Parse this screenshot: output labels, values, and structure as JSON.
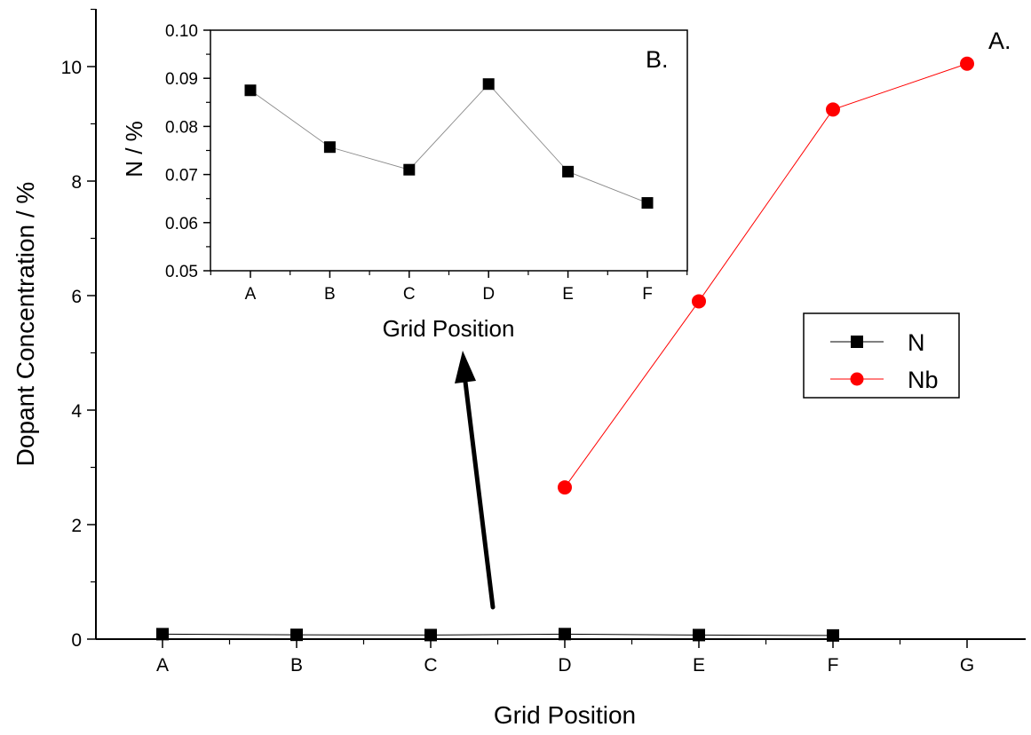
{
  "chart_data": [
    {
      "type": "line",
      "panel_label": "A.",
      "xlabel": "Grid Position",
      "ylabel": "Dopant Concentration / %",
      "categories": [
        "A",
        "B",
        "C",
        "D",
        "E",
        "F",
        "G"
      ],
      "ylim": [
        0,
        11
      ],
      "yticks": [
        "0",
        "2",
        "4",
        "6",
        "8",
        "10"
      ],
      "legend_position": "right-middle",
      "series": [
        {
          "name": "N",
          "marker": "square",
          "color": "#000000",
          "values": [
            0.087,
            0.075,
            0.071,
            0.088,
            0.071,
            0.064,
            null
          ]
        },
        {
          "name": "Nb",
          "marker": "circle",
          "color": "#ff0000",
          "values": [
            null,
            null,
            null,
            2.65,
            5.9,
            9.25,
            10.05
          ]
        }
      ]
    },
    {
      "type": "line",
      "panel_label": "B.",
      "xlabel": "Grid Position",
      "ylabel": "N / %",
      "categories": [
        "A",
        "B",
        "C",
        "D",
        "E",
        "F"
      ],
      "ylim": [
        0.05,
        0.1
      ],
      "yticks": [
        "0.05",
        "0.06",
        "0.07",
        "0.08",
        "0.09",
        "0.10"
      ],
      "series": [
        {
          "name": "N",
          "marker": "square",
          "color": "#000000",
          "values": [
            0.0875,
            0.0757,
            0.071,
            0.0888,
            0.0706,
            0.0641
          ]
        }
      ]
    }
  ],
  "annotation": {
    "type": "arrow",
    "from": "main-N-series",
    "to": "inset-panel-B"
  }
}
